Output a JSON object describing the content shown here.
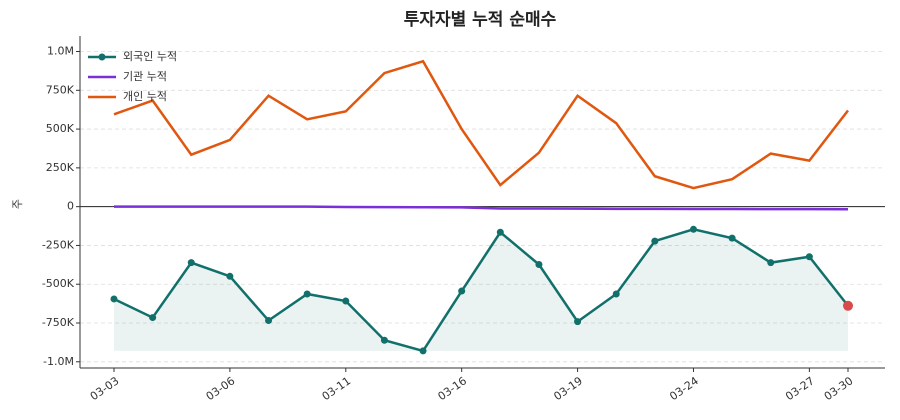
{
  "chart_data": {
    "type": "line",
    "title": "투자자별 누적 순매수",
    "y_label": "주",
    "categories": [
      "03-03",
      null,
      null,
      "03-06",
      null,
      null,
      "03-11",
      null,
      null,
      "03-16",
      null,
      null,
      "03-19",
      null,
      null,
      "03-24",
      null,
      null,
      "03-27",
      "03-30"
    ],
    "series": [
      {
        "name": "외국인 누적",
        "color": "#12706b",
        "marker": true,
        "fill": true,
        "last_point_color": "#d94a4a",
        "values": [
          -595000,
          -715000,
          -361000,
          -449000,
          -734000,
          -563000,
          -608000,
          -861000,
          -930000,
          -544000,
          -165000,
          -373000,
          -741000,
          -563000,
          -222000,
          -146000,
          -203000,
          -361000,
          -323000,
          -639000
        ]
      },
      {
        "name": "기관 누적",
        "color": "#7b2fd6",
        "marker": false,
        "fill": false,
        "values": [
          0,
          0,
          0,
          0,
          0,
          0,
          -2000,
          -3000,
          -4000,
          -5000,
          -12000,
          -12000,
          -13000,
          -14000,
          -14000,
          -15000,
          -15000,
          -16000,
          -16000,
          -17000
        ]
      },
      {
        "name": "개인 누적",
        "color": "#e0570f",
        "marker": false,
        "fill": false,
        "values": [
          595000,
          684000,
          335000,
          430000,
          715000,
          563000,
          614000,
          861000,
          937000,
          500000,
          139000,
          348000,
          715000,
          538000,
          196000,
          120000,
          177000,
          342000,
          297000,
          620000
        ]
      }
    ],
    "ylim": [
      -1040000,
      1100000
    ],
    "yticks": [
      {
        "value": -1000000,
        "label": "-1.0M"
      },
      {
        "value": -750000,
        "label": "-750K"
      },
      {
        "value": -500000,
        "label": "-500K"
      },
      {
        "value": -250000,
        "label": "-250K"
      },
      0,
      {
        "value": 250000,
        "label": "250K"
      },
      {
        "value": 500000,
        "label": "500K"
      },
      {
        "value": 750000,
        "label": "750K"
      },
      {
        "value": 1000000,
        "label": "1.0M"
      }
    ],
    "grid": true,
    "legend": "upper-left"
  }
}
